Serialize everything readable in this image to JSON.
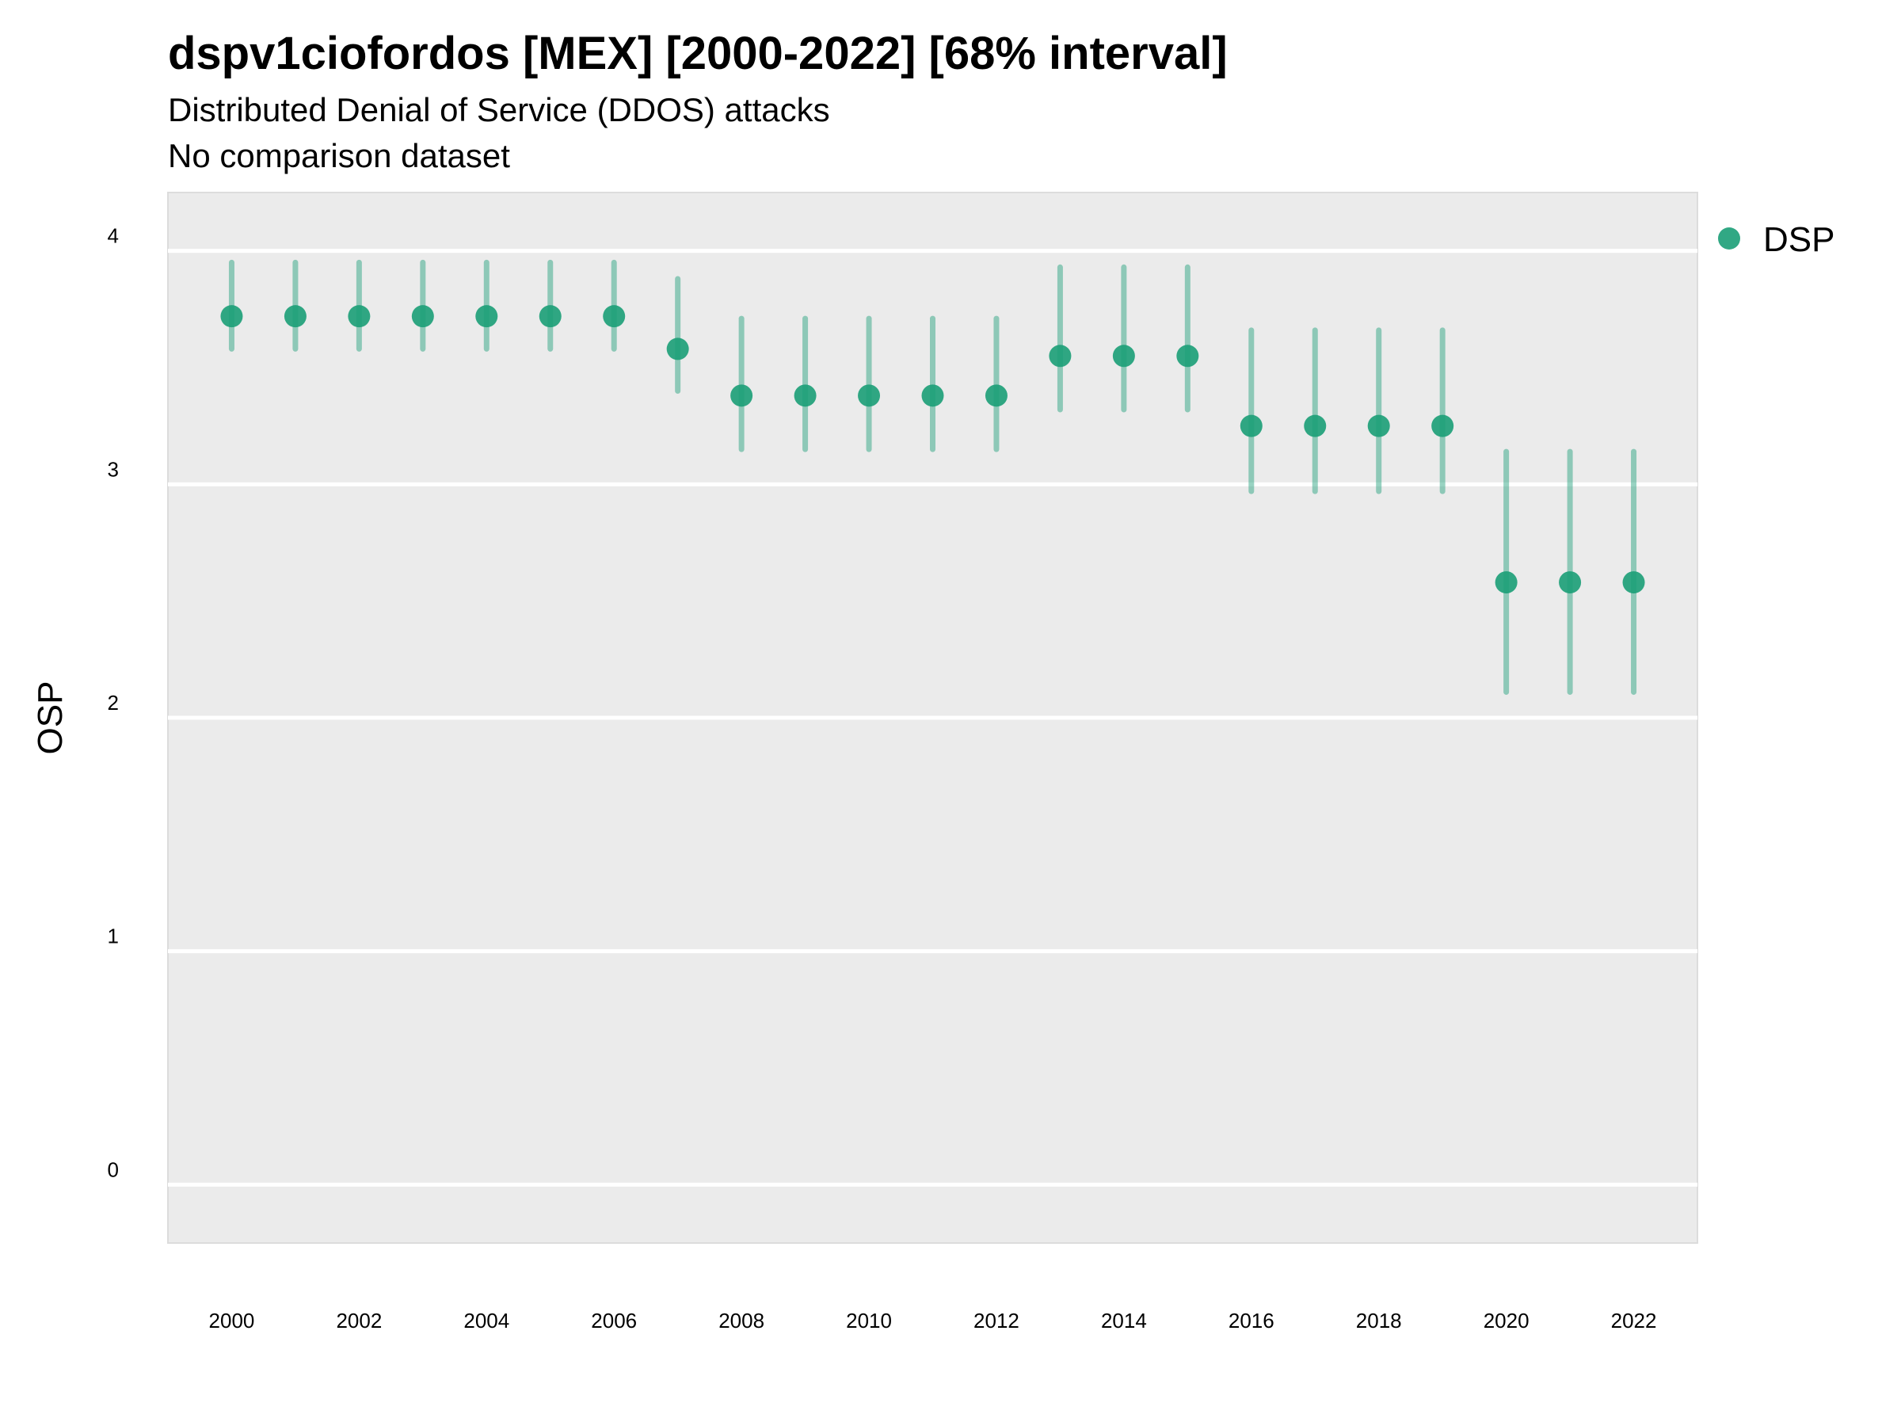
{
  "title": "dspv1ciofordos [MEX] [2000-2022] [68% interval]",
  "subtitle": "Distributed Denial of Service (DDOS) attacks",
  "subtitle2": "No comparison dataset",
  "chart_data": {
    "type": "scatter",
    "title": "dspv1ciofordos [MEX] [2000-2022] [68% interval]",
    "ylabel": "OSP",
    "xlabel": "",
    "ylim": [
      -0.25,
      4.25
    ],
    "xlim": [
      1999,
      2023
    ],
    "yticks": [
      0,
      1,
      2,
      3,
      4
    ],
    "xticks": [
      2000,
      2002,
      2004,
      2006,
      2008,
      2010,
      2012,
      2014,
      2016,
      2018,
      2020,
      2022
    ],
    "grid": true,
    "legend_position": "right",
    "colors": {
      "point": "#1b9e77",
      "panel": "#ebebeb",
      "grid": "#ffffff"
    },
    "series": [
      {
        "name": "DSP",
        "x": [
          2000,
          2001,
          2002,
          2003,
          2004,
          2005,
          2006,
          2007,
          2008,
          2009,
          2010,
          2011,
          2012,
          2013,
          2014,
          2015,
          2016,
          2017,
          2018,
          2019,
          2020,
          2021,
          2022
        ],
        "y": [
          3.72,
          3.72,
          3.72,
          3.72,
          3.72,
          3.72,
          3.72,
          3.58,
          3.38,
          3.38,
          3.38,
          3.38,
          3.38,
          3.55,
          3.55,
          3.55,
          3.25,
          3.25,
          3.25,
          3.25,
          2.58,
          2.58,
          2.58
        ],
        "lower": [
          3.58,
          3.58,
          3.58,
          3.58,
          3.58,
          3.58,
          3.58,
          3.4,
          3.15,
          3.15,
          3.15,
          3.15,
          3.15,
          3.32,
          3.32,
          3.32,
          2.97,
          2.97,
          2.97,
          2.97,
          2.11,
          2.11,
          2.11
        ],
        "upper": [
          3.95,
          3.95,
          3.95,
          3.95,
          3.95,
          3.95,
          3.95,
          3.88,
          3.71,
          3.71,
          3.71,
          3.71,
          3.71,
          3.93,
          3.93,
          3.93,
          3.66,
          3.66,
          3.66,
          3.66,
          3.14,
          3.14,
          3.14
        ]
      }
    ]
  }
}
